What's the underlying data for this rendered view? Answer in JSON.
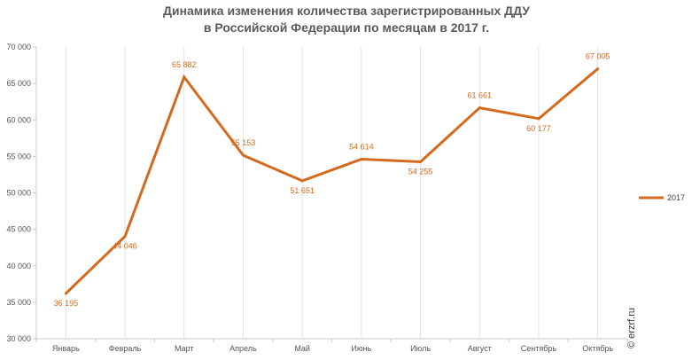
{
  "chart_data": {
    "type": "line",
    "title_lines": [
      "Динамика изменения количества зарегистрированных ДДУ",
      "в Российской Федерации по месяцам в 2017 г."
    ],
    "categories": [
      "Январь",
      "Февраль",
      "Март",
      "Апрель",
      "Май",
      "Июнь",
      "Июль",
      "Август",
      "Сентябрь",
      "Октябрь"
    ],
    "series": [
      {
        "name": "2017",
        "color": "#d46a1e",
        "values": [
          36195,
          44046,
          65882,
          55153,
          51651,
          54614,
          54255,
          61661,
          60177,
          67005
        ],
        "labels": [
          "36 195",
          "44 046",
          "65 882",
          "55 153",
          "51 651",
          "54 614",
          "54 255",
          "61 661",
          "60 177",
          "67 005"
        ]
      }
    ],
    "ylim": [
      30000,
      70000
    ],
    "yticks": [
      30000,
      35000,
      40000,
      45000,
      50000,
      55000,
      60000,
      65000,
      70000
    ],
    "ytick_labels": [
      "30 000",
      "35 000",
      "40 000",
      "45 000",
      "50 000",
      "55 000",
      "60 000",
      "65 000",
      "70 000"
    ],
    "legend_position": "right",
    "grid": "vertical",
    "credit": "© erzrf.ru"
  }
}
